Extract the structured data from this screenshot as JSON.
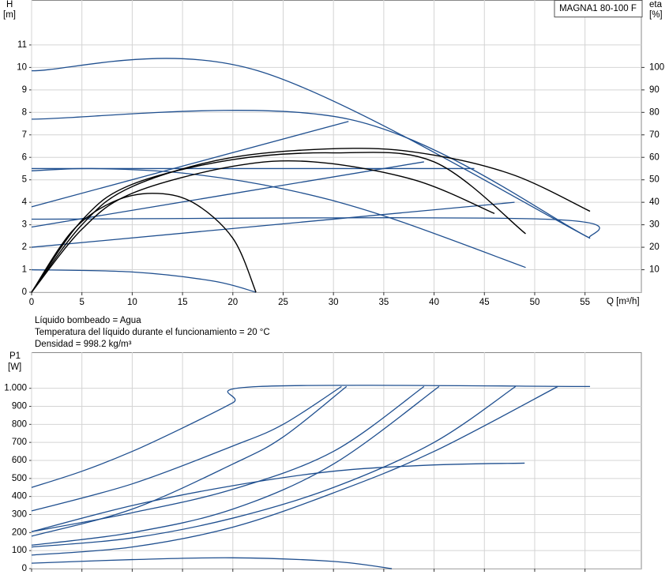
{
  "chart_data": [
    {
      "type": "line",
      "title": "MAGNA1 80-100 F",
      "ylabel": [
        "H",
        "[m]"
      ],
      "y2label": [
        "eta",
        "[%]"
      ],
      "xlabel": "Q [m³/h]",
      "notes": [
        "Líquido bombeado = Agua",
        "Temperatura del líquido durante el funcionamiento = 20 °C",
        "Densidad = 998.2 kg/m³"
      ],
      "xlim": [
        0,
        60.6
      ],
      "xticks": [
        0,
        5,
        10,
        15,
        20,
        25,
        30,
        35,
        40,
        45,
        50,
        55
      ],
      "ylim": [
        0,
        13
      ],
      "yticks": [
        0,
        1,
        2,
        3,
        4,
        5,
        6,
        7,
        8,
        9,
        10,
        11
      ],
      "y2lim": [
        0,
        130
      ],
      "y2ticks": [
        10,
        20,
        30,
        40,
        50,
        60,
        70,
        80,
        90,
        100
      ],
      "grid": true,
      "series": [
        {
          "color": "#1f4f8f",
          "x": [
            0,
            22.5,
            55.5
          ],
          "values": [
            9.85,
            9.85,
            2.4
          ]
        },
        {
          "color": "#1f4f8f",
          "x": [
            0,
            31.5,
            55.5
          ],
          "values": [
            7.7,
            7.7,
            2.4
          ]
        },
        {
          "color": "#1f4f8f",
          "x": [
            0,
            44
          ],
          "values": [
            5.5,
            5.5
          ]
        },
        {
          "color": "#1f4f8f",
          "x": [
            0,
            6,
            15,
            25,
            35,
            49.1
          ],
          "values": [
            5.4,
            5.5,
            5.3,
            4.6,
            3.4,
            1.1
          ]
        },
        {
          "color": "#1f4f8f",
          "x": [
            0,
            51,
            55.5
          ],
          "values": [
            3.25,
            3.25,
            2.4
          ]
        },
        {
          "color": "#1f4f8f",
          "x": [
            0,
            10,
            18,
            22.3
          ],
          "values": [
            1.0,
            0.9,
            0.5,
            0
          ]
        },
        {
          "color": "#1f4f8f",
          "x": [
            0,
            31.5
          ],
          "values": [
            3.8,
            7.6
          ]
        },
        {
          "color": "#1f4f8f",
          "x": [
            0,
            39
          ],
          "values": [
            2.9,
            5.8
          ]
        },
        {
          "color": "#1f4f8f",
          "x": [
            0,
            48
          ],
          "values": [
            2.0,
            4.0
          ]
        },
        {
          "color": "#000000",
          "axis": "y2",
          "x": [
            0,
            5,
            10,
            20,
            32,
            40,
            48,
            55.5
          ],
          "values": [
            0,
            30,
            47,
            60,
            64,
            61,
            52,
            36
          ]
        },
        {
          "color": "#000000",
          "axis": "y2",
          "x": [
            0,
            5,
            10,
            20,
            30,
            40,
            49.1
          ],
          "values": [
            0,
            32,
            48,
            59,
            62,
            58,
            26
          ]
        },
        {
          "color": "#000000",
          "axis": "y2",
          "x": [
            0,
            5,
            10,
            20,
            28,
            38,
            46
          ],
          "values": [
            0,
            28,
            44,
            56,
            58,
            50,
            35
          ]
        },
        {
          "color": "#000000",
          "axis": "y2",
          "x": [
            0,
            4,
            8,
            12,
            16,
            20,
            22.3
          ],
          "values": [
            0,
            27,
            40,
            44,
            40,
            24,
            0
          ]
        }
      ]
    },
    {
      "type": "line",
      "ylabel": [
        "P1",
        "[W]"
      ],
      "xlim": [
        0,
        60.6
      ],
      "ylim": [
        0,
        1200
      ],
      "yticks": [
        0,
        100,
        200,
        300,
        400,
        500,
        600,
        700,
        800,
        900,
        {
          "value": 1000,
          "label": "1.000"
        }
      ],
      "grid": true,
      "series": [
        {
          "color": "#1f4f8f",
          "x": [
            0,
            5,
            10,
            15,
            20,
            22.6,
            55.5
          ],
          "values": [
            450,
            540,
            650,
            780,
            920,
            1010,
            1010
          ]
        },
        {
          "color": "#1f4f8f",
          "x": [
            0,
            10,
            20,
            25,
            30.8
          ],
          "values": [
            320,
            470,
            680,
            800,
            1010
          ]
        },
        {
          "color": "#1f4f8f",
          "x": [
            0,
            10,
            20,
            25,
            31.3
          ],
          "values": [
            180,
            330,
            580,
            730,
            1010
          ]
        },
        {
          "color": "#1f4f8f",
          "x": [
            0,
            10,
            20,
            30,
            39
          ],
          "values": [
            205,
            310,
            440,
            650,
            1010
          ]
        },
        {
          "color": "#1f4f8f",
          "x": [
            0,
            10,
            20,
            30,
            40.5
          ],
          "values": [
            130,
            200,
            330,
            580,
            1010
          ]
        },
        {
          "color": "#1f4f8f",
          "x": [
            0,
            10,
            20,
            30,
            40,
            48.1
          ],
          "values": [
            120,
            170,
            280,
            450,
            700,
            1010
          ]
        },
        {
          "color": "#1f4f8f",
          "x": [
            0,
            10,
            20,
            30,
            40,
            52.3
          ],
          "values": [
            75,
            120,
            230,
            420,
            650,
            1010
          ]
        },
        {
          "color": "#1f4f8f",
          "x": [
            0,
            10,
            20,
            30,
            40,
            49
          ],
          "values": [
            205,
            350,
            460,
            540,
            575,
            585
          ]
        },
        {
          "color": "#1f4f8f",
          "x": [
            0,
            10,
            20,
            30,
            35.8
          ],
          "values": [
            30,
            50,
            60,
            40,
            0
          ]
        }
      ]
    }
  ]
}
